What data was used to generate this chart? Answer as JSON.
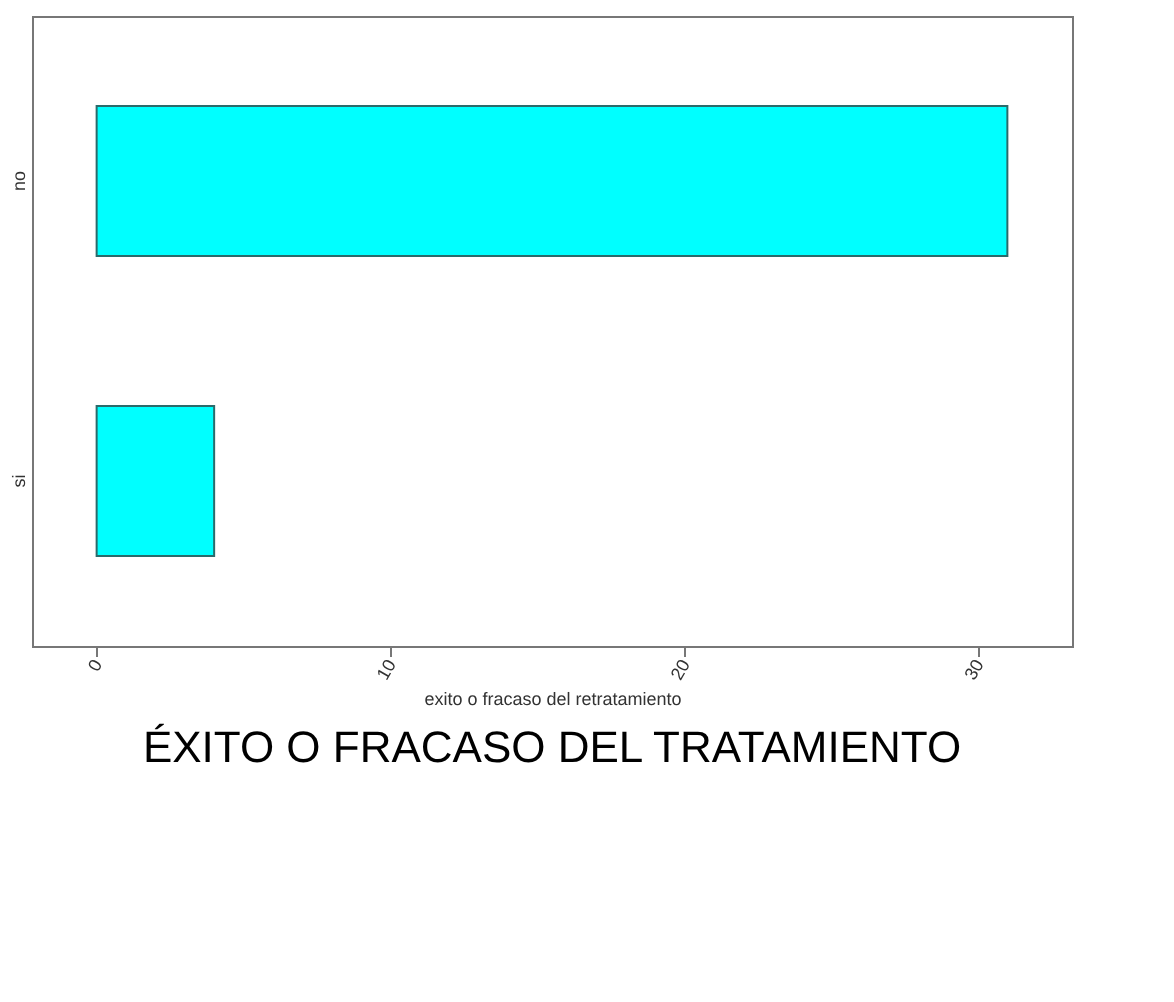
{
  "chart_data": {
    "type": "bar",
    "orientation": "horizontal",
    "title": "ÉXITO O FRACASO DEL TRATAMIENTO",
    "xlabel": "exito o fracaso del retratamiento",
    "categories": [
      "no",
      "si"
    ],
    "values": [
      31,
      4
    ],
    "color": "#00ffff",
    "xlim": [
      -2.2,
      33.2
    ],
    "xticks": [
      0,
      10,
      20,
      30
    ]
  }
}
